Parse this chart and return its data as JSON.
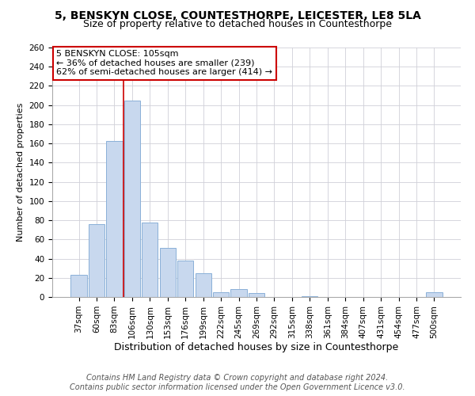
{
  "title": "5, BENSKYN CLOSE, COUNTESTHORPE, LEICESTER, LE8 5LA",
  "subtitle": "Size of property relative to detached houses in Countesthorpe",
  "xlabel": "Distribution of detached houses by size in Countesthorpe",
  "ylabel": "Number of detached properties",
  "bar_labels": [
    "37sqm",
    "60sqm",
    "83sqm",
    "106sqm",
    "130sqm",
    "153sqm",
    "176sqm",
    "199sqm",
    "222sqm",
    "245sqm",
    "269sqm",
    "292sqm",
    "315sqm",
    "338sqm",
    "361sqm",
    "384sqm",
    "407sqm",
    "431sqm",
    "454sqm",
    "477sqm",
    "500sqm"
  ],
  "bar_values": [
    23,
    76,
    163,
    205,
    78,
    51,
    38,
    25,
    5,
    8,
    4,
    0,
    0,
    1,
    0,
    0,
    0,
    0,
    0,
    0,
    5
  ],
  "bar_color": "#c8d8ee",
  "bar_edge_color": "#8ab0d8",
  "ylim": [
    0,
    260
  ],
  "yticks": [
    0,
    20,
    40,
    60,
    80,
    100,
    120,
    140,
    160,
    180,
    200,
    220,
    240,
    260
  ],
  "vline_color": "#cc0000",
  "annotation_title": "5 BENSKYN CLOSE: 105sqm",
  "annotation_line1": "← 36% of detached houses are smaller (239)",
  "annotation_line2": "62% of semi-detached houses are larger (414) →",
  "annotation_box_color": "#ffffff",
  "annotation_box_edge": "#cc0000",
  "footer1": "Contains HM Land Registry data © Crown copyright and database right 2024.",
  "footer2": "Contains public sector information licensed under the Open Government Licence v3.0.",
  "bg_color": "#ffffff",
  "grid_color": "#d0d0d8",
  "title_fontsize": 10,
  "subtitle_fontsize": 9,
  "xlabel_fontsize": 9,
  "ylabel_fontsize": 8,
  "tick_fontsize": 7.5,
  "footer_fontsize": 7
}
